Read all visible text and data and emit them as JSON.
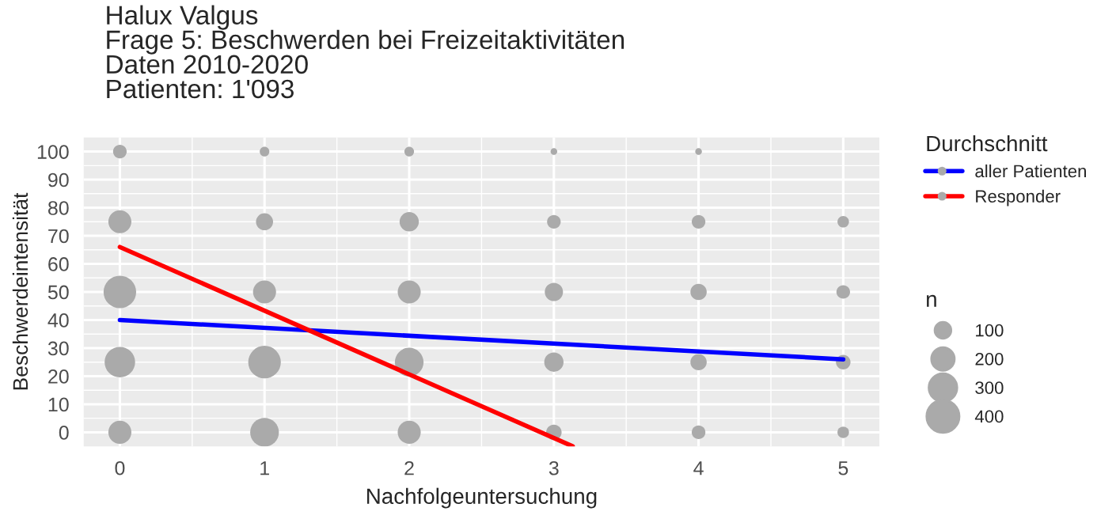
{
  "chart_data": {
    "type": "bubble",
    "title": "Halux Valgus\nFrage 5: Beschwerden bei Freizeitaktivitäten\nDaten 2010-2020\nPatienten: 1'093",
    "xlabel": "Nachfolgeuntersuchung",
    "ylabel": "Beschwerdeintensität",
    "legend_title": "Durchschnitt",
    "xlim": [
      -0.25,
      5.25
    ],
    "xticks": [
      0,
      1,
      2,
      3,
      4,
      5
    ],
    "ylim": [
      -5,
      105
    ],
    "yticks": [
      0,
      10,
      20,
      30,
      40,
      50,
      60,
      70,
      80,
      90,
      100
    ],
    "grid": true,
    "legend": "right",
    "annotations": [
      "n"
    ],
    "size_legend": [
      100,
      200,
      300,
      400
    ],
    "series": [
      {
        "color": "#aaaaaa",
        "x": [
          0,
          0,
          0,
          0,
          0,
          1,
          1,
          1,
          1,
          1,
          2,
          2,
          2,
          2,
          2,
          3,
          3,
          3,
          3,
          3,
          4,
          4,
          4,
          4,
          4,
          5,
          5,
          5,
          5
        ],
        "values": [
          0,
          25,
          50,
          75,
          100,
          0,
          25,
          50,
          75,
          100,
          0,
          25,
          50,
          75,
          100,
          0,
          25,
          50,
          75,
          100,
          0,
          25,
          50,
          75,
          100,
          0,
          25,
          50,
          75
        ],
        "sizes": [
          200,
          350,
          400,
          200,
          70,
          310,
          400,
          200,
          110,
          35,
          200,
          310,
          200,
          140,
          35,
          90,
          140,
          125,
          70,
          17,
          70,
          100,
          100,
          70,
          17,
          50,
          80,
          70,
          50
        ]
      },
      {
        "name": "aller Patienten",
        "type": "line",
        "color": "#0000ff",
        "x": [
          0,
          5
        ],
        "values": [
          40,
          26
        ]
      },
      {
        "name": "Responder",
        "type": "line",
        "color": "#ff0000",
        "x": [
          0,
          3.13
        ],
        "values": [
          66,
          -5
        ]
      }
    ]
  }
}
